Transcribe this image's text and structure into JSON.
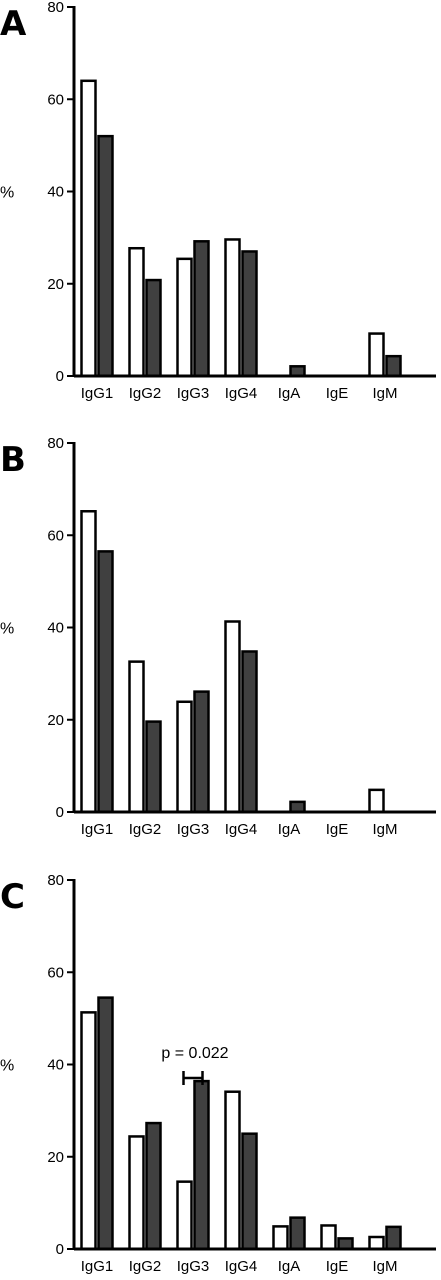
{
  "colors": {
    "open": "#ffffff",
    "filled": "#404040",
    "outline": "#000000"
  },
  "chart_data": [
    {
      "type": "bar",
      "panel": "A",
      "ylabel": "%",
      "ylim": [
        0,
        80
      ],
      "yticks": [
        "0",
        "20",
        "40",
        "60",
        "80"
      ],
      "categories": [
        "IgG1",
        "IgG2",
        "IgG3",
        "IgG4",
        "IgA",
        "IgE",
        "IgM"
      ],
      "series": [
        {
          "values": [
            64,
            27.7,
            25.4,
            29.6,
            0,
            0,
            9.2
          ]
        },
        {
          "values": [
            52,
            20.8,
            29.2,
            27,
            2.1,
            0,
            4.3
          ]
        }
      ],
      "annotations": []
    },
    {
      "type": "bar",
      "panel": "B",
      "ylabel": "%",
      "ylim": [
        0,
        80
      ],
      "yticks": [
        "0",
        "20",
        "40",
        "60",
        "80"
      ],
      "categories": [
        "IgG1",
        "IgG2",
        "IgG3",
        "IgG4",
        "IgA",
        "IgE",
        "IgM"
      ],
      "series": [
        {
          "values": [
            65.2,
            32.6,
            23.9,
            41.3,
            0,
            0,
            4.8
          ]
        },
        {
          "values": [
            56.5,
            19.6,
            26.1,
            34.8,
            2.2,
            0,
            0
          ]
        }
      ],
      "annotations": []
    },
    {
      "type": "bar",
      "panel": "C",
      "ylabel": "%",
      "ylim": [
        0,
        80
      ],
      "yticks": [
        "0",
        "20",
        "40",
        "60",
        "80"
      ],
      "categories": [
        "IgG1",
        "IgG2",
        "IgG3",
        "IgG4",
        "IgA",
        "IgE",
        "IgM"
      ],
      "series": [
        {
          "values": [
            51.3,
            24.4,
            14.6,
            34.1,
            4.9,
            5.1,
            2.6
          ]
        },
        {
          "values": [
            54.5,
            27.3,
            36.4,
            25,
            6.8,
            2.3,
            4.8
          ]
        }
      ],
      "annotations": [
        {
          "text": "p = 0.022",
          "category": "IgG3"
        }
      ]
    }
  ]
}
